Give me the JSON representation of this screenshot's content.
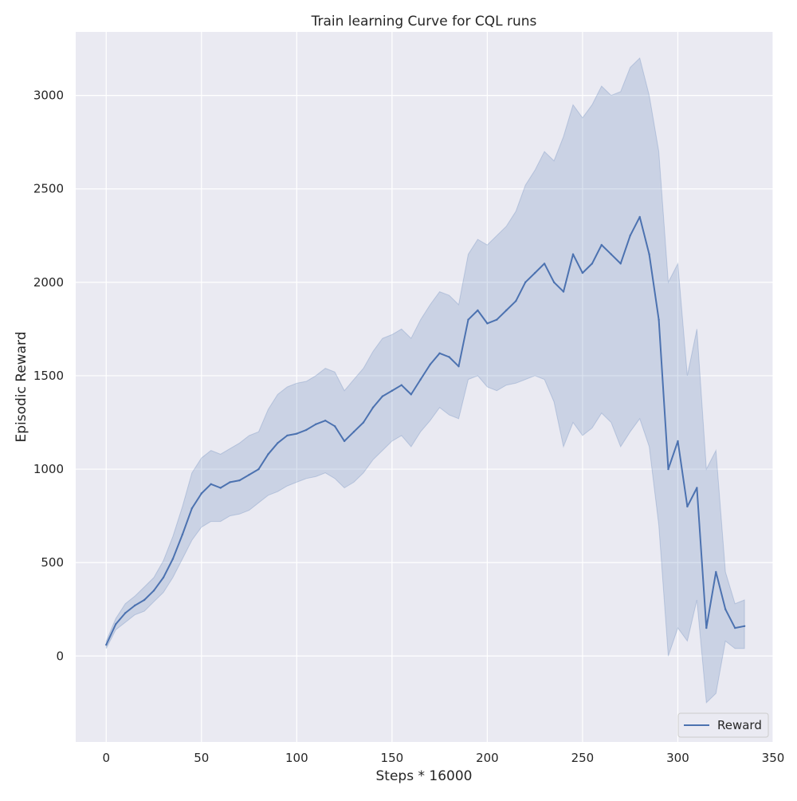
{
  "chart_data": {
    "type": "line",
    "title": "Train learning Curve for CQL runs",
    "xlabel": "Steps * 16000",
    "ylabel": "Episodic Reward",
    "xlim": [
      -16,
      350
    ],
    "ylim": [
      -460,
      3340
    ],
    "xticks": [
      0,
      50,
      100,
      150,
      200,
      250,
      300,
      350
    ],
    "yticks": [
      0,
      500,
      1000,
      1500,
      2000,
      2500,
      3000
    ],
    "grid": true,
    "legend_position": "bottom-right",
    "colors": {
      "line": "#4c72b0",
      "band": "#4c72b0",
      "background": "#eaeaf2",
      "grid": "#ffffff"
    },
    "series": [
      {
        "name": "Reward",
        "x": [
          0,
          5,
          10,
          15,
          20,
          25,
          30,
          35,
          40,
          45,
          50,
          55,
          60,
          65,
          70,
          75,
          80,
          85,
          90,
          95,
          100,
          105,
          110,
          115,
          120,
          125,
          130,
          135,
          140,
          145,
          150,
          155,
          160,
          165,
          170,
          175,
          180,
          185,
          190,
          195,
          200,
          205,
          210,
          215,
          220,
          225,
          230,
          235,
          240,
          245,
          250,
          255,
          260,
          265,
          270,
          275,
          280,
          285,
          290,
          295,
          300,
          305,
          310,
          315,
          320,
          325,
          330,
          335
        ],
        "values": [
          60,
          170,
          230,
          270,
          300,
          350,
          420,
          520,
          650,
          790,
          870,
          920,
          900,
          930,
          940,
          970,
          1000,
          1080,
          1140,
          1180,
          1190,
          1210,
          1240,
          1260,
          1230,
          1150,
          1200,
          1250,
          1330,
          1390,
          1420,
          1450,
          1400,
          1480,
          1560,
          1620,
          1600,
          1550,
          1800,
          1850,
          1780,
          1800,
          1850,
          1900,
          2000,
          2050,
          2100,
          2000,
          1950,
          2150,
          2050,
          2100,
          2200,
          2150,
          2100,
          2250,
          2350,
          2150,
          1800,
          1000,
          1150,
          800,
          900,
          150,
          450,
          250,
          150,
          160
        ],
        "lower": [
          40,
          140,
          180,
          220,
          240,
          290,
          340,
          420,
          520,
          620,
          690,
          720,
          720,
          750,
          760,
          780,
          820,
          860,
          880,
          910,
          930,
          950,
          960,
          980,
          950,
          900,
          930,
          980,
          1050,
          1100,
          1150,
          1180,
          1120,
          1200,
          1260,
          1330,
          1290,
          1270,
          1480,
          1500,
          1440,
          1420,
          1450,
          1460,
          1480,
          1500,
          1480,
          1360,
          1120,
          1250,
          1180,
          1220,
          1300,
          1250,
          1120,
          1200,
          1270,
          1120,
          700,
          0,
          150,
          80,
          300,
          -250,
          -200,
          80,
          40,
          40
        ],
        "upper": [
          80,
          200,
          280,
          320,
          370,
          420,
          510,
          640,
          800,
          980,
          1060,
          1100,
          1080,
          1110,
          1140,
          1180,
          1200,
          1320,
          1400,
          1440,
          1460,
          1470,
          1500,
          1540,
          1520,
          1420,
          1480,
          1540,
          1630,
          1700,
          1720,
          1750,
          1700,
          1800,
          1880,
          1950,
          1930,
          1880,
          2150,
          2230,
          2200,
          2250,
          2300,
          2380,
          2520,
          2600,
          2700,
          2650,
          2780,
          2950,
          2880,
          2950,
          3050,
          3000,
          3020,
          3150,
          3200,
          3000,
          2700,
          2000,
          2100,
          1500,
          1750,
          1000,
          1100,
          450,
          280,
          300
        ]
      }
    ]
  }
}
